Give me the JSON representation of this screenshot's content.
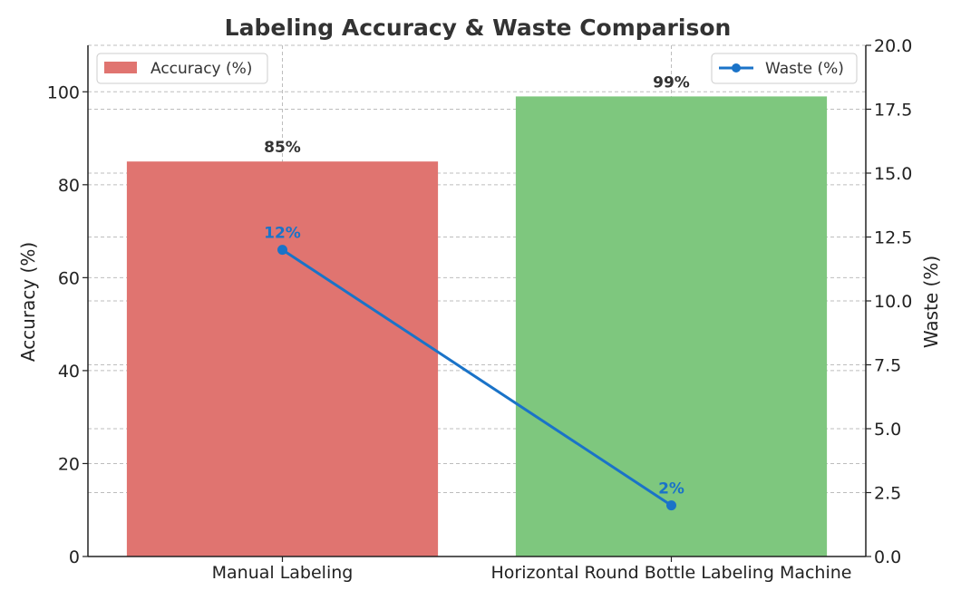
{
  "chart_data": {
    "type": "bar",
    "title": "Labeling Accuracy & Waste Comparison",
    "categories": [
      "Manual Labeling",
      "Horizontal Round Bottle Labeling Machine"
    ],
    "series": [
      {
        "name": "Accuracy (%)",
        "type": "bar",
        "axis": "left",
        "values": [
          85,
          99
        ],
        "labels": [
          "85%",
          "99%"
        ],
        "colors": [
          "#e07470",
          "#7ec77e"
        ]
      },
      {
        "name": "Waste (%)",
        "type": "line",
        "axis": "right",
        "values": [
          12,
          2
        ],
        "labels": [
          "12%",
          "2%"
        ],
        "color": "#1a73c8"
      }
    ],
    "ylabel": "Accuracy (%)",
    "ylabel_right": "Waste (%)",
    "ylim": [
      0,
      110
    ],
    "ylim_right": [
      0,
      20
    ],
    "yticks": [
      "0",
      "20",
      "40",
      "60",
      "80",
      "100"
    ],
    "yticks_right": [
      "0.0",
      "2.5",
      "5.0",
      "7.5",
      "10.0",
      "12.5",
      "15.0",
      "17.5",
      "20.0"
    ],
    "grid": true,
    "legend": [
      {
        "label": "Accuracy (%)",
        "placement": "top-left"
      },
      {
        "label": "Waste (%)",
        "placement": "top-right"
      }
    ]
  }
}
